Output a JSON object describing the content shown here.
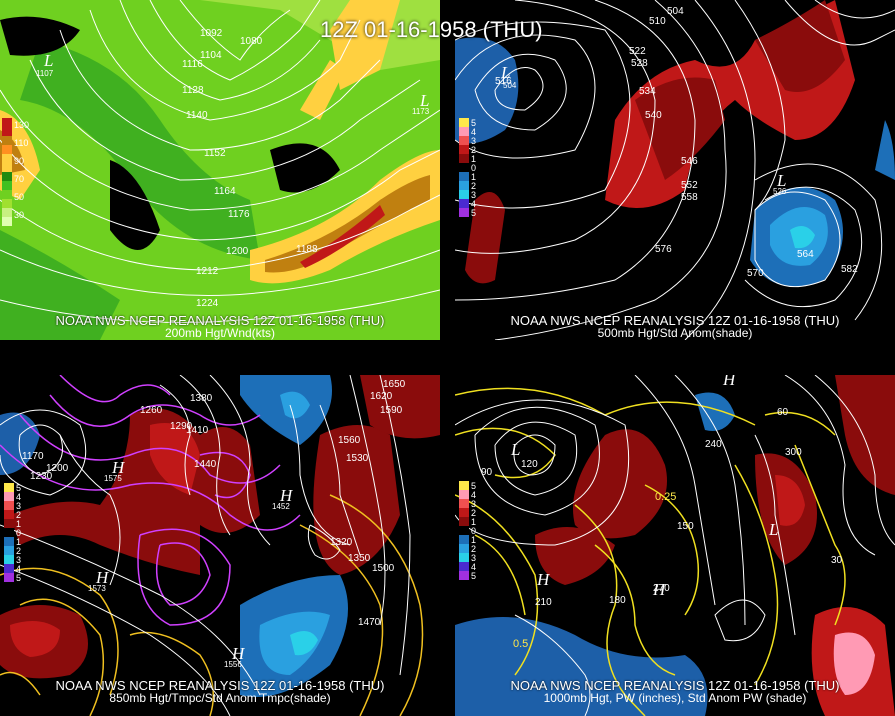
{
  "main_title": "12Z 01-16-1958 (THU)",
  "panels": [
    {
      "credit": "NOAA NWS NCEP REANALYSIS 12Z 01-16-1958 (THU)",
      "subtitle": "200mb Hgt/Wnd(kts)",
      "legend": [
        "130",
        "110",
        "90",
        "70",
        "50",
        "30"
      ],
      "contour_labels": [
        "1092",
        "1080",
        "1104",
        "1116",
        "1128",
        "1140",
        "1152",
        "1164",
        "1176",
        "1188",
        "1200",
        "1212",
        "1224"
      ],
      "lows": [
        "L",
        "L"
      ],
      "low_values": [
        "1107",
        "1173"
      ]
    },
    {
      "credit": "NOAA NWS NCEP REANALYSIS 12Z 01-16-1958 (THU)",
      "subtitle": "500mb Hgt/Std Anom(shade)",
      "legend": [
        "5",
        "4",
        "3",
        "2",
        "1",
        "0",
        "1",
        "2",
        "3",
        "4",
        "5"
      ],
      "contour_labels": [
        "504",
        "510",
        "516",
        "522",
        "528",
        "534",
        "540",
        "546",
        "552",
        "558",
        "564",
        "570",
        "576",
        "582"
      ],
      "lows": [
        "L",
        "L"
      ],
      "low_values": [
        "504",
        "526"
      ]
    },
    {
      "credit": "NOAA NWS NCEP REANALYSIS 12Z 01-16-1958 (THU)",
      "subtitle": "850mb Hgt/Tmpc/Std Anom Tmpc(shade)",
      "legend": [
        "5",
        "4",
        "3",
        "2",
        "1",
        "0",
        "1",
        "2",
        "3",
        "4",
        "5"
      ],
      "contour_labels": [
        "1650",
        "1620",
        "1590",
        "1560",
        "1530",
        "1500",
        "1470",
        "1440",
        "1410",
        "1380",
        "1350",
        "1320",
        "1290",
        "1260",
        "1230",
        "1200",
        "1170"
      ],
      "highs": [
        "H",
        "H",
        "H",
        "H"
      ],
      "high_values": [
        "1575",
        "1452",
        "1573",
        "1556"
      ]
    },
    {
      "credit": "NOAA NWS NCEP REANALYSIS 12Z 01-16-1958 (THU)",
      "subtitle": "1000mb Hgt, PW (inches), Std Anom PW (shade)",
      "legend": [
        "5",
        "4",
        "3",
        "2",
        "1",
        "0",
        "1",
        "2",
        "3",
        "4",
        "5"
      ],
      "contour_labels": [
        "60",
        "90",
        "120",
        "150",
        "180",
        "210",
        "240",
        "270",
        "300",
        "30",
        "0.25",
        "0.5"
      ],
      "highs": [
        "H",
        "H",
        "H"
      ],
      "lows": [
        "L",
        "L"
      ]
    }
  ],
  "legend_colors_warm": [
    "#ffe84a",
    "#ff9ab4",
    "#f05050",
    "#c01818",
    "#8a0c0c"
  ],
  "legend_colors_cold": [
    "#1d6fb8",
    "#2aa0e0",
    "#2ad0e8",
    "#4a2ad0",
    "#a030e0"
  ],
  "wind_colors": [
    "#a0e030",
    "#40c020",
    "#208a10",
    "#ffd040",
    "#ff9020",
    "#c05010"
  ]
}
